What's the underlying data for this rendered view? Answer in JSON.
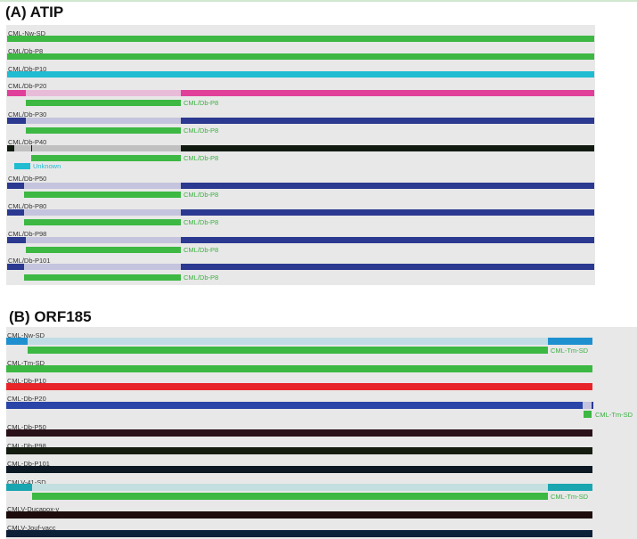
{
  "panel_a": {
    "title": "(A) ATIP",
    "rows": [
      "CML-Nw-SD",
      "CML/Db-P8",
      "CML/Db-P10",
      "CML/Db-P20",
      "CML/Db-P30",
      "CML/Db-P40",
      "CML/Db-P50",
      "CML/Db-P80",
      "CML/Db-P98",
      "CML/Db-P101"
    ],
    "match_label": "CML/Db-P8",
    "unknown_label": "Unknown"
  },
  "panel_b": {
    "title": "(B) ORF185",
    "rows": [
      "CML-Nw-SD",
      "CML-Tm-SD",
      "CML-Db-P10",
      "CML-Db-P20",
      "CML-Db-P50",
      "CML-Db-P98",
      "CML-Db-P101",
      "CMLV-41-SD",
      "CMLV-Ducapox-v",
      "CMLV-Jouf-vacc"
    ],
    "match_label": "CML-Tm-SD"
  },
  "colors": {
    "green": "#3cb843",
    "cyan": "#1fbcd2",
    "magenta": "#e0409a",
    "pink": "#e8bcd8",
    "navy": "#2b3990",
    "lavender": "#c4c4de",
    "black": "#111a11",
    "grey": "#c0c0c0",
    "blue": "#1e90d0",
    "lightblue": "#c2dce6",
    "red": "#e8262a",
    "royal": "#2a45a8",
    "maroon": "#2a1018",
    "darkgreen": "#141c10",
    "darknavy": "#0c1824",
    "teal": "#1aa6b0",
    "lightteal": "#c4dfe0",
    "darkred": "#1e0c0c",
    "deepblue": "#0c2038"
  }
}
